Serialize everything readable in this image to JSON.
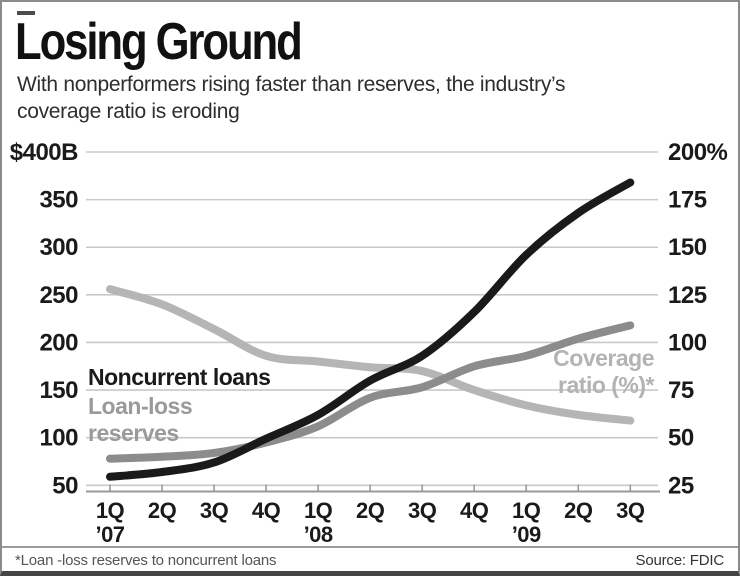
{
  "header": {
    "title": "Losing Ground",
    "subtitle": "With nonperformers rising faster than reserves, the industry’s\ncoverage ratio is eroding"
  },
  "chart_data": {
    "type": "line",
    "title": "Losing Ground",
    "categories": [
      "1Q '07",
      "2Q '07",
      "3Q '07",
      "4Q '07",
      "1Q '08",
      "2Q '08",
      "3Q '08",
      "4Q '08",
      "1Q '09",
      "2Q '09",
      "3Q '09"
    ],
    "x_tick_quarters": [
      "1Q",
      "2Q",
      "3Q",
      "4Q",
      "1Q",
      "2Q",
      "3Q",
      "4Q",
      "1Q",
      "2Q",
      "3Q"
    ],
    "x_tick_years": [
      {
        "index": 0,
        "label": "’07"
      },
      {
        "index": 4,
        "label": "’08"
      },
      {
        "index": 8,
        "label": "’09"
      }
    ],
    "left_axis": {
      "unit": "$B",
      "labels": [
        "$400B",
        "350",
        "300",
        "250",
        "200",
        "150",
        "100",
        "50"
      ],
      "max": 400,
      "min": 50,
      "step": 50
    },
    "right_axis": {
      "unit": "%",
      "labels": [
        "200%",
        "175",
        "150",
        "125",
        "100",
        "75",
        "50",
        "25"
      ],
      "max": 200,
      "min": 25,
      "step": 25
    },
    "grid": true,
    "legend_position": "inline-annotations",
    "series": [
      {
        "name": "Coverage ratio (%)*",
        "axis": "right",
        "color": "#b5b5b5",
        "values": [
          128,
          120,
          107,
          93,
          90,
          87,
          85,
          75,
          67,
          62,
          59
        ]
      },
      {
        "name": "Loan-loss reserves",
        "axis": "left",
        "color": "#8c8c8c",
        "values": [
          78,
          80,
          84,
          95,
          112,
          142,
          153,
          175,
          186,
          204,
          218
        ]
      },
      {
        "name": "Noncurrent loans",
        "axis": "left",
        "color": "#1a1a1a",
        "values": [
          59,
          64,
          74,
          99,
          124,
          160,
          186,
          232,
          292,
          336,
          368
        ]
      }
    ],
    "annotations": {
      "noncurrent": "Noncurrent loans",
      "reserves": "Loan-loss\nreserves",
      "coverage": "Coverage\nratio (%)*"
    }
  },
  "footer": {
    "note": "*Loan -loss reserves to noncurrent loans",
    "source": "Source: FDIC"
  },
  "colors": {
    "grid": "#c9c9c9",
    "axis": "#9a9a9a",
    "text": "#1a1a1a"
  }
}
